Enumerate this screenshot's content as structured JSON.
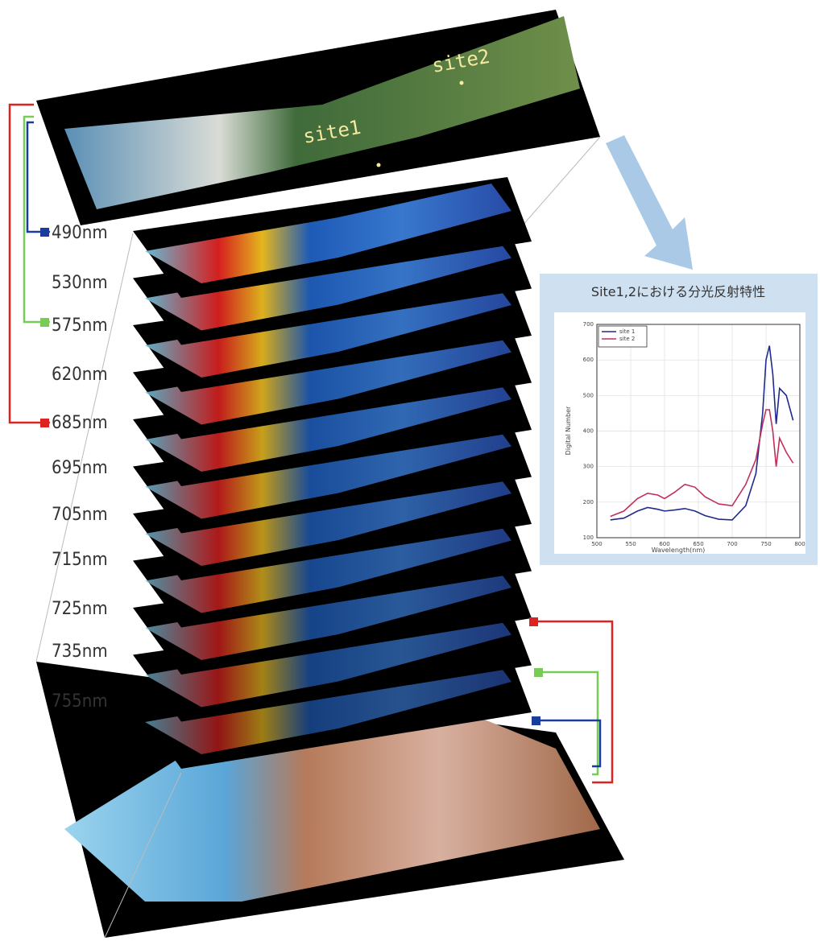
{
  "diagram": {
    "site_labels": [
      "site1",
      "site2"
    ],
    "band_labels": [
      "490nm",
      "530nm",
      "575nm",
      "620nm",
      "685nm",
      "695nm",
      "705nm",
      "715nm",
      "725nm",
      "735nm",
      "755nm"
    ]
  },
  "chart_data": {
    "type": "line",
    "title": "Site1,2における分光反射特性",
    "x_label": "Wavelength(nm)",
    "y_label": "Digital Number",
    "x": [
      520,
      540,
      560,
      575,
      590,
      600,
      615,
      630,
      645,
      660,
      680,
      700,
      720,
      735,
      745,
      750,
      755,
      760,
      765,
      770,
      780,
      790
    ],
    "series": [
      {
        "name": "site 1",
        "color": "#1f2a8c",
        "values": [
          150,
          155,
          175,
          185,
          180,
          175,
          178,
          182,
          175,
          162,
          152,
          150,
          190,
          280,
          450,
          600,
          640,
          560,
          420,
          520,
          500,
          430
        ]
      },
      {
        "name": "site 2",
        "color": "#c0305a",
        "values": [
          160,
          175,
          210,
          225,
          220,
          210,
          228,
          250,
          242,
          215,
          195,
          190,
          250,
          320,
          420,
          460,
          460,
          400,
          300,
          380,
          340,
          310
        ]
      }
    ],
    "xlim": [
      500,
      800
    ],
    "xticks": [
      500,
      550,
      600,
      650,
      700,
      750,
      800
    ],
    "ylim": [
      100,
      700
    ],
    "yticks": [
      100,
      200,
      300,
      400,
      500,
      600,
      700
    ],
    "grid": true,
    "legend": "top-left"
  }
}
